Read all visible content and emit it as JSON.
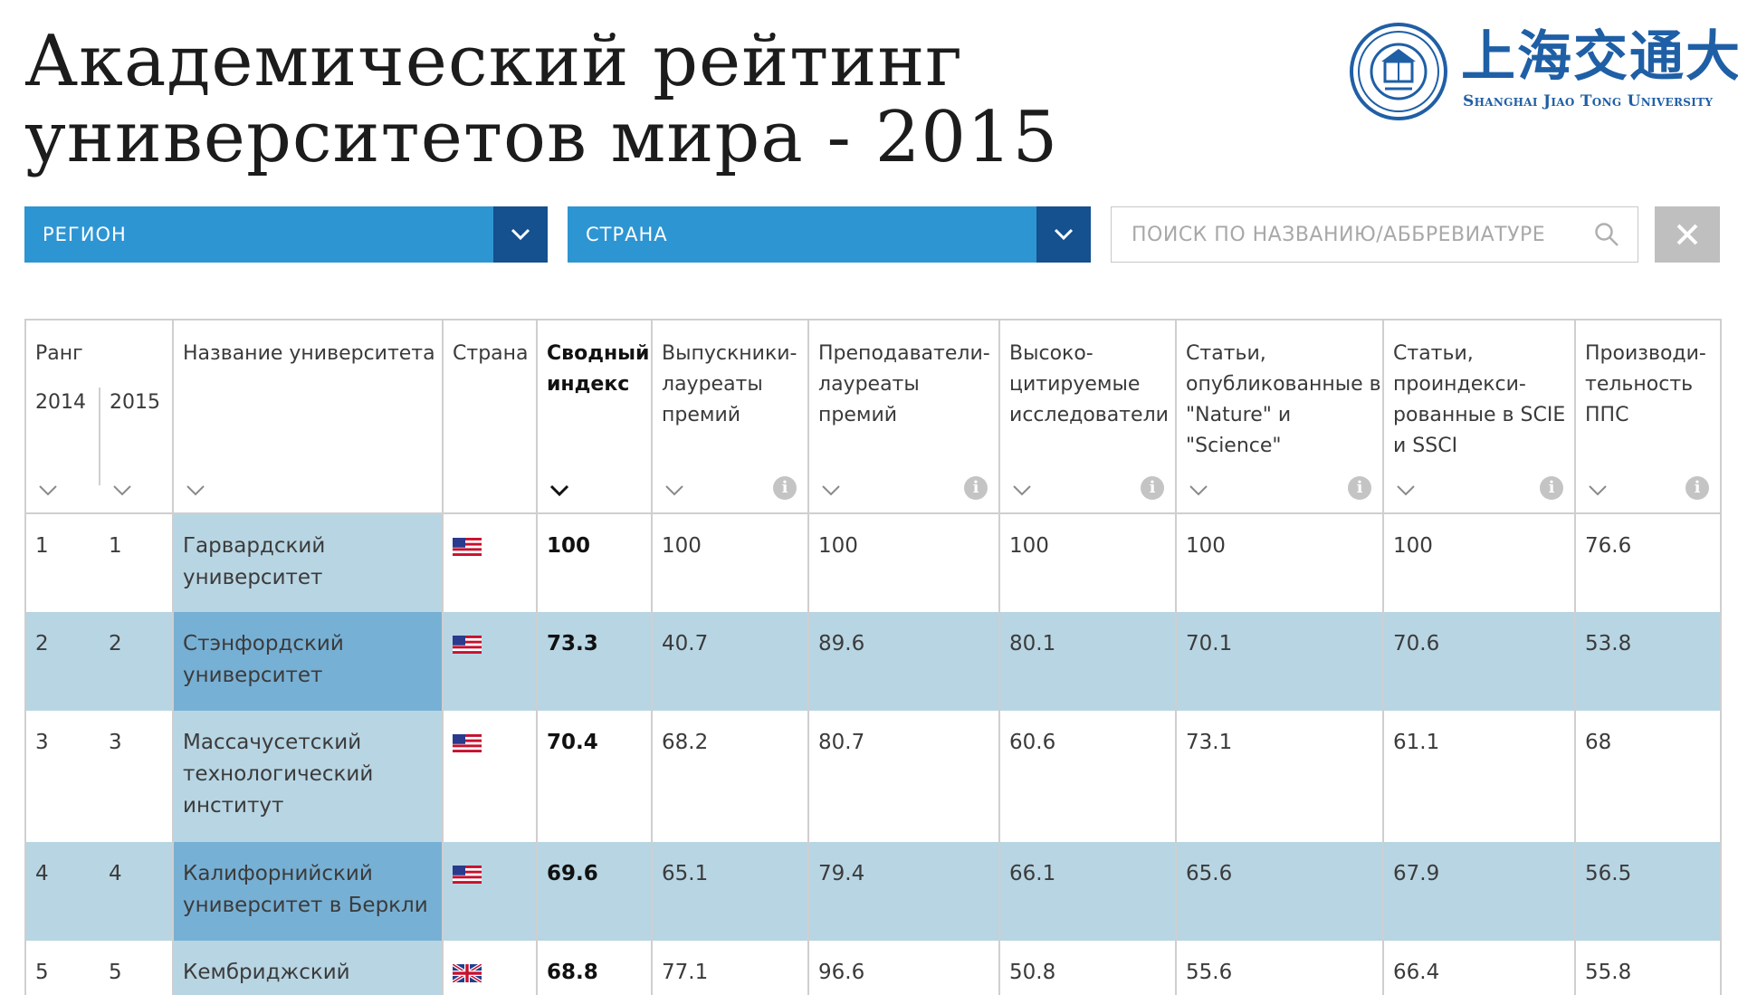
{
  "header": {
    "title_line1": "Академический рейтинг",
    "title_line2": "университетов мира - 2015"
  },
  "logo": {
    "chinese_name": "上海交通大學",
    "english_name": "Shanghai Jiao Tong University"
  },
  "filters": {
    "region_label": "РЕГИОН",
    "country_label": "СТРАНА",
    "search_placeholder": "ПОИСК ПО НАЗВАНИЮ/АББРЕВИАТУРЕ"
  },
  "table": {
    "headers": {
      "rank": "Ранг",
      "year_2014": "2014",
      "year_2015": "2015",
      "name": "Название университета",
      "country": "Страна",
      "total": "Сводный индекс",
      "alumni": "Выпускники-лауреаты премий",
      "award": "Преподаватели-лауреаты премий",
      "hici": "Высоко-цитируемые исследователи",
      "ns": "Статьи, опубликованные в \"Nature\" и \"Science\"",
      "pub": "Статьи, проиндекси-рованные в SCIE и SSCI",
      "pcp": "Производи-тельность ППС"
    },
    "rows": [
      {
        "rank_2014": "1",
        "rank_2015": "1",
        "name": "Гарвардский университет",
        "country_flag": "us-flag",
        "total": "100",
        "alumni": "100",
        "award": "100",
        "hici": "100",
        "ns": "100",
        "pub": "100",
        "pcp": "76.6"
      },
      {
        "rank_2014": "2",
        "rank_2015": "2",
        "name": "Стэнфордский университет",
        "country_flag": "us-flag",
        "total": "73.3",
        "alumni": "40.7",
        "award": "89.6",
        "hici": "80.1",
        "ns": "70.1",
        "pub": "70.6",
        "pcp": "53.8"
      },
      {
        "rank_2014": "3",
        "rank_2015": "3",
        "name": "Массачусетский технологический институт",
        "country_flag": "us-flag",
        "total": "70.4",
        "alumni": "68.2",
        "award": "80.7",
        "hici": "60.6",
        "ns": "73.1",
        "pub": "61.1",
        "pcp": "68"
      },
      {
        "rank_2014": "4",
        "rank_2015": "4",
        "name": "Калифорнийский университет в Беркли",
        "country_flag": "us-flag",
        "total": "69.6",
        "alumni": "65.1",
        "award": "79.4",
        "hici": "66.1",
        "ns": "65.6",
        "pub": "67.9",
        "pcp": "56.5"
      },
      {
        "rank_2014": "5",
        "rank_2015": "5",
        "name": "Кембриджский",
        "country_flag": "uk-flag",
        "total": "68.8",
        "alumni": "77.1",
        "award": "96.6",
        "hici": "50.8",
        "ns": "55.6",
        "pub": "66.4",
        "pcp": "55.8"
      }
    ]
  },
  "colors": {
    "select_bg": "#2e95d3",
    "select_arrow_bg": "#15508f",
    "row_stripe": "#b8d5e3",
    "name_highlight": "#77b0d5",
    "logo_blue": "#1f5fa6"
  }
}
